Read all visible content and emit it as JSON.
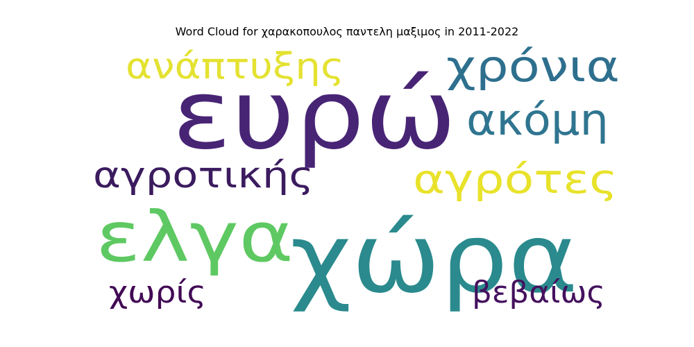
{
  "chart_data": {
    "type": "wordcloud",
    "title": "Word Cloud for χαρακοπουλος παντελη μαξιμος in 2011-2022",
    "words": [
      {
        "text": "ευρώ",
        "rank": 1,
        "color": "#482475"
      },
      {
        "text": "χώρα",
        "rank": 2,
        "color": "#2a8a8d"
      },
      {
        "text": "ελγα",
        "rank": 3,
        "color": "#5ec962"
      },
      {
        "text": "χρόνια",
        "rank": 4,
        "color": "#2e6f8e"
      },
      {
        "text": "ακόμη",
        "rank": 5,
        "color": "#2f7590"
      },
      {
        "text": "αγρότες",
        "rank": 6,
        "color": "#e8e22b"
      },
      {
        "text": "ανάπτυξης",
        "rank": 7,
        "color": "#e4e231"
      },
      {
        "text": "αγροτικής",
        "rank": 8,
        "color": "#3b1b5e"
      },
      {
        "text": "βεβαίως",
        "rank": 9,
        "color": "#44115e"
      },
      {
        "text": "χωρίς",
        "rank": 10,
        "color": "#420a55"
      }
    ]
  }
}
